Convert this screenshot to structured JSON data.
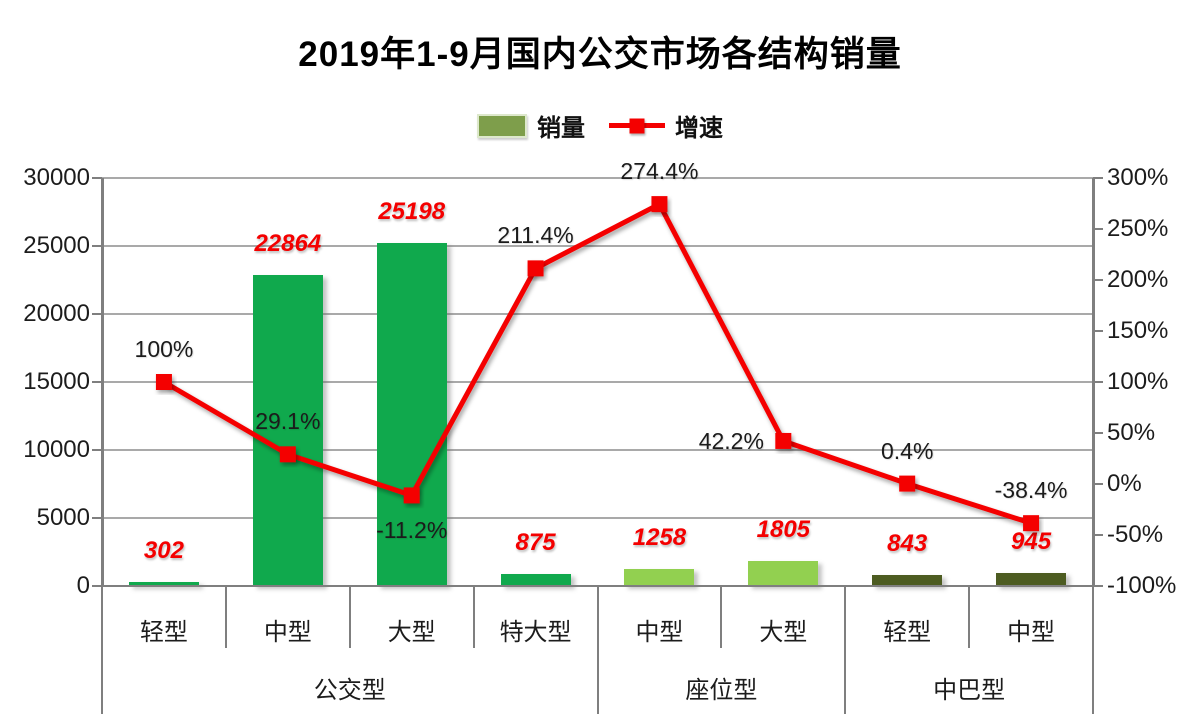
{
  "title": "2019年1-9月国内公交市场各结构销量",
  "legend": {
    "sales_label": "销量",
    "growth_label": "增速"
  },
  "colors": {
    "emerald_green": "#10a94d",
    "light_green": "#92d050",
    "dark_olive": "#4d5c21",
    "line_red": "#f40000",
    "value_label_red": "#f40000",
    "grid_gray": "#9a9a9a",
    "axis_gray": "#7f7f7f",
    "legend_swatch_olive": "#7e9e4b"
  },
  "chart_data": {
    "type": "bar",
    "subtype": "combo-bar-line",
    "title": "2019年1-9月国内公交市场各结构销量",
    "categories": [
      "轻型",
      "中型",
      "大型",
      "特大型",
      "中型",
      "大型",
      "轻型",
      "中型"
    ],
    "groups": [
      {
        "label": "公交型",
        "span": 4
      },
      {
        "label": "座位型",
        "span": 2
      },
      {
        "label": "中巴型",
        "span": 2
      }
    ],
    "series": [
      {
        "name": "销量",
        "type": "bar",
        "axis": "left",
        "values": [
          302,
          22864,
          25198,
          875,
          1258,
          1805,
          843,
          945
        ],
        "value_labels": [
          "302",
          "22864",
          "25198",
          "875",
          "1258",
          "1805",
          "843",
          "945"
        ],
        "colors": [
          "#10a94d",
          "#10a94d",
          "#10a94d",
          "#10a94d",
          "#92d050",
          "#92d050",
          "#4d5c21",
          "#4d5c21"
        ]
      },
      {
        "name": "增速",
        "type": "line",
        "axis": "right",
        "values": [
          100,
          29.1,
          -11.2,
          211.4,
          274.4,
          42.2,
          0.4,
          -38.4
        ],
        "point_labels": [
          "100%",
          "29.1%",
          "-11.2%",
          "211.4%",
          "274.4%",
          "42.2%",
          "0.4%",
          "-38.4%"
        ],
        "label_pos": [
          "above",
          "above",
          "below",
          "above",
          "above",
          "left",
          "above",
          "above"
        ],
        "color": "#f40000"
      }
    ],
    "left_axis": {
      "min": 0,
      "max": 30000,
      "step": 5000,
      "tick_labels": [
        "30000",
        "25000",
        "20000",
        "15000",
        "10000",
        "5000",
        "0"
      ]
    },
    "right_axis": {
      "min": -100,
      "max": 300,
      "step": 50,
      "tick_labels": [
        "300%",
        "250%",
        "200%",
        "150%",
        "100%",
        "50%",
        "0%",
        "-50%",
        "-100%"
      ]
    },
    "grid": true,
    "legend_position": "top"
  }
}
